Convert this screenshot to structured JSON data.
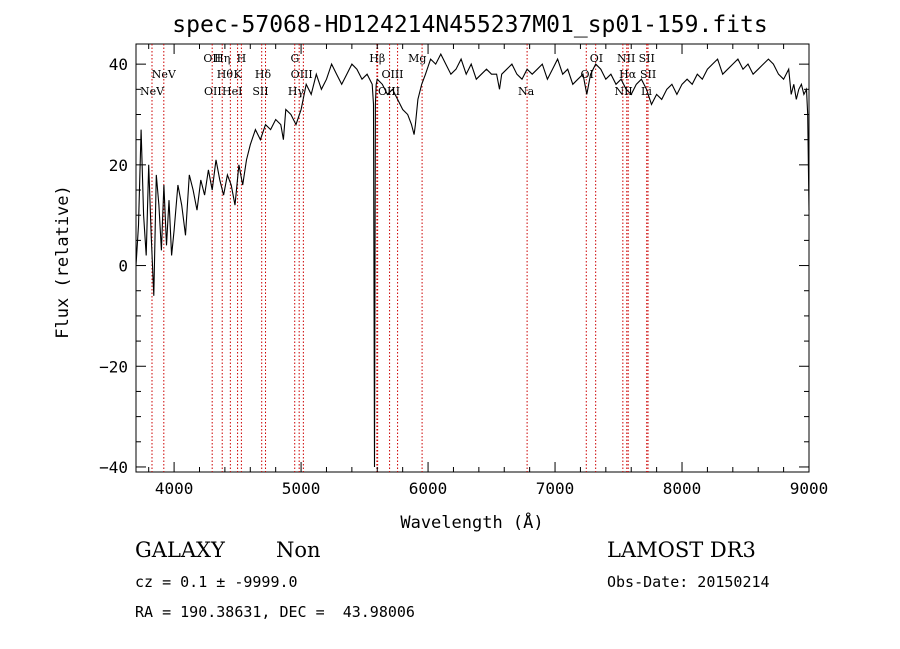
{
  "chart_data": {
    "type": "line",
    "title": "spec-57068-HD124214N455237M01_sp01-159.fits",
    "xlabel": "Wavelength (Å)",
    "ylabel": "Flux (relative)",
    "xlim": [
      3700,
      9000
    ],
    "ylim": [
      -41,
      44
    ],
    "x_ticks": [
      4000,
      5000,
      6000,
      7000,
      8000,
      9000
    ],
    "y_ticks": [
      -40,
      -20,
      0,
      20,
      40
    ],
    "grid": false,
    "series": [
      {
        "name": "flux",
        "color": "#000000",
        "x": [
          3700,
          3720,
          3740,
          3760,
          3780,
          3800,
          3820,
          3840,
          3860,
          3880,
          3900,
          3920,
          3940,
          3960,
          3980,
          4000,
          4030,
          4060,
          4090,
          4120,
          4150,
          4180,
          4210,
          4240,
          4270,
          4300,
          4330,
          4360,
          4390,
          4420,
          4450,
          4480,
          4510,
          4540,
          4570,
          4600,
          4640,
          4680,
          4720,
          4760,
          4800,
          4840,
          4861,
          4880,
          4920,
          4960,
          5000,
          5040,
          5080,
          5120,
          5160,
          5200,
          5240,
          5280,
          5320,
          5360,
          5400,
          5440,
          5480,
          5520,
          5560,
          5570,
          5578,
          5585,
          5592,
          5600,
          5640,
          5680,
          5720,
          5760,
          5800,
          5840,
          5870,
          5890,
          5900,
          5920,
          5950,
          5980,
          6020,
          6060,
          6100,
          6140,
          6180,
          6220,
          6260,
          6300,
          6340,
          6380,
          6420,
          6460,
          6500,
          6540,
          6563,
          6580,
          6620,
          6660,
          6700,
          6740,
          6780,
          6820,
          6860,
          6900,
          6940,
          6980,
          7020,
          7060,
          7100,
          7140,
          7180,
          7220,
          7250,
          7280,
          7320,
          7360,
          7400,
          7440,
          7480,
          7520,
          7560,
          7600,
          7640,
          7680,
          7720,
          7760,
          7800,
          7840,
          7880,
          7920,
          7960,
          8000,
          8040,
          8080,
          8120,
          8160,
          8200,
          8240,
          8280,
          8320,
          8360,
          8400,
          8440,
          8480,
          8520,
          8560,
          8600,
          8640,
          8680,
          8720,
          8760,
          8800,
          8840,
          8860,
          8880,
          8900,
          8920,
          8940,
          8960,
          8980,
          8990,
          9000
        ],
        "values": [
          0,
          8,
          27,
          10,
          2,
          20,
          6,
          -6,
          18,
          12,
          3,
          16,
          4,
          13,
          2,
          7,
          16,
          12,
          6,
          18,
          15,
          11,
          17,
          14,
          19,
          15,
          21,
          17,
          14,
          18,
          16,
          12,
          20,
          16,
          21,
          24,
          27,
          25,
          28,
          27,
          29,
          28,
          25,
          31,
          30,
          28,
          31,
          36,
          34,
          38,
          35,
          37,
          40,
          38,
          36,
          38,
          40,
          39,
          37,
          38,
          36,
          32,
          -40,
          32,
          36,
          37,
          36,
          34,
          35,
          33,
          31,
          30,
          28,
          26,
          28,
          33,
          36,
          38,
          41,
          40,
          42,
          40,
          38,
          39,
          41,
          38,
          40,
          37,
          38,
          39,
          38,
          38,
          35,
          38,
          39,
          40,
          38,
          37,
          39,
          38,
          39,
          40,
          37,
          39,
          41,
          38,
          39,
          36,
          37,
          38,
          34,
          38,
          40,
          39,
          37,
          38,
          36,
          37,
          35,
          34,
          36,
          37,
          35,
          32,
          34,
          33,
          35,
          36,
          34,
          36,
          37,
          36,
          38,
          37,
          39,
          40,
          41,
          38,
          39,
          40,
          41,
          39,
          40,
          38,
          39,
          40,
          41,
          40,
          38,
          37,
          39,
          34,
          36,
          33,
          35,
          36,
          34,
          35,
          30,
          11
        ]
      }
    ],
    "spectral_lines": [
      {
        "label": "NeV",
        "x": 3826,
        "row": 2
      },
      {
        "label": "NeV",
        "x": 3919,
        "row": 1
      },
      {
        "label": "OII",
        "x": 4300,
        "row": 0
      },
      {
        "label": "OII",
        "x": 4305,
        "row": 2
      },
      {
        "label": "Hη",
        "x": 4379,
        "row": 0
      },
      {
        "label": "Hθ",
        "x": 4400,
        "row": 1
      },
      {
        "label": "HeI",
        "x": 4458,
        "row": 2
      },
      {
        "label": "H",
        "x": 4530,
        "row": 0
      },
      {
        "label": "K",
        "x": 4500,
        "row": 1
      },
      {
        "label": "Hδ",
        "x": 4700,
        "row": 1
      },
      {
        "label": "SII",
        "x": 4680,
        "row": 2
      },
      {
        "label": "G",
        "x": 4951,
        "row": 0
      },
      {
        "label": "OIII",
        "x": 5005,
        "row": 1
      },
      {
        "label": "Hγ",
        "x": 4960,
        "row": 2
      },
      {
        "label": "Hβ",
        "x": 5600,
        "row": 0
      },
      {
        "label": "OIII",
        "x": 5720,
        "row": 1
      },
      {
        "label": "OIII",
        "x": 5693,
        "row": 2
      },
      {
        "label": "Mg",
        "x": 5915,
        "row": 0
      },
      {
        "label": "Na",
        "x": 6772,
        "row": 2
      },
      {
        "label": "OI",
        "x": 7326,
        "row": 0
      },
      {
        "label": "OI",
        "x": 7253,
        "row": 1
      },
      {
        "label": "NII",
        "x": 7560,
        "row": 0
      },
      {
        "label": "Hα",
        "x": 7572,
        "row": 1
      },
      {
        "label": "NII",
        "x": 7540,
        "row": 2
      },
      {
        "label": "SII",
        "x": 7722,
        "row": 0
      },
      {
        "label": "SII",
        "x": 7733,
        "row": 1
      },
      {
        "label": "Li",
        "x": 7720,
        "row": 2
      }
    ],
    "line_markers_x": [
      3826,
      3919,
      4300,
      4379,
      4443,
      4500,
      4530,
      4690,
      4720,
      4950,
      4985,
      5018,
      5597,
      5603,
      5697,
      5760,
      5953,
      6780,
      7246,
      7320,
      7534,
      7565,
      7576,
      7722,
      7732
    ]
  },
  "info": {
    "class": "GALAXY",
    "subclass": "Non",
    "survey": "LAMOST DR3",
    "cz": "cz = 0.1 ± -9999.0",
    "obs_date": "Obs-Date: 20150214",
    "coords": "RA = 190.38631, DEC =  43.98006"
  }
}
